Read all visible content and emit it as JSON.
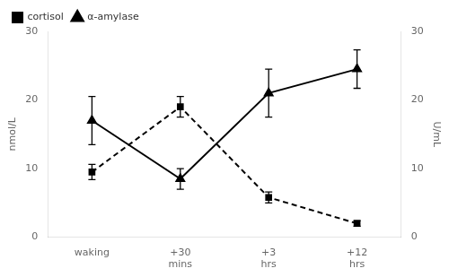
{
  "chart_data": {
    "type": "line",
    "categories": [
      "waking",
      "+30\nmins",
      "+3\nhrs",
      "+12\nhrs"
    ],
    "series": [
      {
        "name": "cortisol",
        "color": "black",
        "marker": "square",
        "line_style": "dashed",
        "values": [
          9.5,
          19.0,
          5.8,
          2.0
        ],
        "errors": [
          1.1,
          1.5,
          0.8,
          0.4
        ]
      },
      {
        "name": "α-amylase",
        "color": "black",
        "marker": "triangle",
        "line_style": "solid",
        "axis": "y2",
        "values": [
          17.0,
          8.5,
          21.0,
          24.5
        ],
        "errors": [
          3.5,
          1.5,
          3.5,
          2.8
        ]
      }
    ],
    "ylabel": "nmol/L",
    "y2label": "U/mL",
    "ylim": [
      0,
      30
    ],
    "yticks": [
      0,
      10,
      20,
      30
    ],
    "y2lim": [
      0,
      30
    ],
    "y2ticks": [
      0,
      10,
      20,
      30
    ],
    "grid": false,
    "legend": "upper left"
  }
}
